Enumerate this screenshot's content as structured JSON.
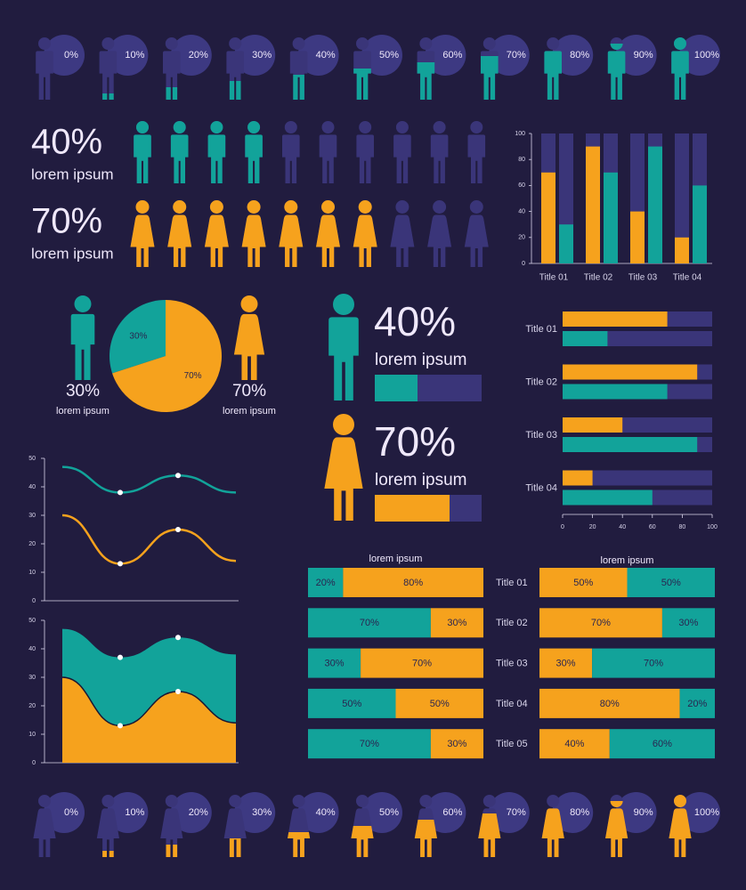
{
  "chart_data": [
    {
      "type": "pictogram",
      "figure": "male",
      "values": [
        0,
        10,
        20,
        30,
        40,
        50,
        60,
        70,
        80,
        90,
        100
      ],
      "value_labels": [
        "0%",
        "10%",
        "20%",
        "30%",
        "40%",
        "50%",
        "60%",
        "70%",
        "80%",
        "90%",
        "100%"
      ],
      "color": "#12a39a"
    },
    {
      "type": "iconrow",
      "figure": "male",
      "value": 40,
      "value_label": "40%",
      "label": "lorem ipsum",
      "color": "#12a39a"
    },
    {
      "type": "iconrow",
      "figure": "female",
      "value": 70,
      "value_label": "70%",
      "label": "lorem ipsum",
      "color": "#f6a21d"
    },
    {
      "type": "bar",
      "categories": [
        "Title 01",
        "Title 02",
        "Title 03",
        "Title 04"
      ],
      "series": [
        {
          "color": "#f6a21d",
          "values": [
            70,
            90,
            40,
            20
          ]
        },
        {
          "color": "#12a39a",
          "values": [
            30,
            70,
            90,
            60
          ]
        }
      ],
      "ylim": [
        0,
        100
      ],
      "yticks": [
        0,
        20,
        40,
        60,
        80,
        100
      ]
    },
    {
      "type": "pie",
      "values": [
        30,
        70
      ],
      "value_labels": [
        "30%",
        "70%"
      ],
      "captions": [
        "lorem ipsum",
        "lorem ipsum"
      ],
      "colors": [
        "#12a39a",
        "#f6a21d"
      ]
    },
    {
      "type": "progress",
      "values": [
        40,
        70
      ],
      "value_labels": [
        "40%",
        "70%"
      ],
      "labels": [
        "lorem ipsum",
        "lorem ipsum"
      ],
      "colors": [
        "#12a39a",
        "#f6a21d"
      ]
    },
    {
      "type": "barh",
      "categories": [
        "Title 01",
        "Title 02",
        "Title 03",
        "Title 04"
      ],
      "series": [
        {
          "color": "#f6a21d",
          "values": [
            70,
            90,
            40,
            20
          ]
        },
        {
          "color": "#12a39a",
          "values": [
            30,
            70,
            90,
            60
          ]
        }
      ],
      "xlim": [
        0,
        100
      ],
      "xticks": [
        0,
        20,
        40,
        60,
        80,
        100
      ]
    },
    {
      "type": "line",
      "categories": [
        null,
        null,
        null,
        null
      ],
      "series": [
        {
          "color": "#12a39a",
          "values": [
            47,
            38,
            44,
            38
          ]
        },
        {
          "color": "#f6a21d",
          "values": [
            30,
            13,
            25,
            14
          ]
        }
      ],
      "ylim": [
        0,
        50
      ],
      "yticks": [
        0,
        10,
        20,
        30,
        40,
        50
      ]
    },
    {
      "type": "area",
      "categories": [
        null,
        null,
        null,
        null
      ],
      "series": [
        {
          "color": "#12a39a",
          "values": [
            47,
            37,
            44,
            38
          ]
        },
        {
          "color": "#f6a21d",
          "values": [
            30,
            13,
            25,
            14
          ]
        }
      ],
      "ylim": [
        0,
        50
      ],
      "yticks": [
        0,
        10,
        20,
        30,
        40,
        50
      ]
    },
    {
      "type": "stacked",
      "title": "lorem ipsum",
      "categories": [
        null,
        null,
        null,
        null,
        null
      ],
      "series": [
        {
          "color": "#12a39a",
          "values": [
            20,
            70,
            30,
            50,
            70
          ],
          "value_labels": [
            "20%",
            "70%",
            "30%",
            "50%",
            "70%"
          ]
        },
        {
          "color": "#f6a21d",
          "values": [
            80,
            30,
            70,
            50,
            30
          ],
          "value_labels": [
            "80%",
            "30%",
            "70%",
            "50%",
            "30%"
          ]
        }
      ]
    },
    {
      "type": "stacked",
      "title": "lorem ipsum",
      "categories": [
        "Title 01",
        "Title 02",
        "Title 03",
        "Title 04",
        "Title 05"
      ],
      "series": [
        {
          "color": "#f6a21d",
          "values": [
            50,
            70,
            30,
            80,
            40
          ],
          "value_labels": [
            "50%",
            "70%",
            "30%",
            "80%",
            "40%"
          ]
        },
        {
          "color": "#12a39a",
          "values": [
            50,
            30,
            70,
            20,
            60
          ],
          "value_labels": [
            "50%",
            "30%",
            "70%",
            "20%",
            "60%"
          ]
        }
      ]
    },
    {
      "type": "pictogram",
      "figure": "female",
      "values": [
        0,
        10,
        20,
        30,
        40,
        50,
        60,
        70,
        80,
        90,
        100
      ],
      "value_labels": [
        "0%",
        "10%",
        "20%",
        "30%",
        "40%",
        "50%",
        "60%",
        "70%",
        "80%",
        "90%",
        "100%"
      ],
      "color": "#f6a21d"
    }
  ]
}
